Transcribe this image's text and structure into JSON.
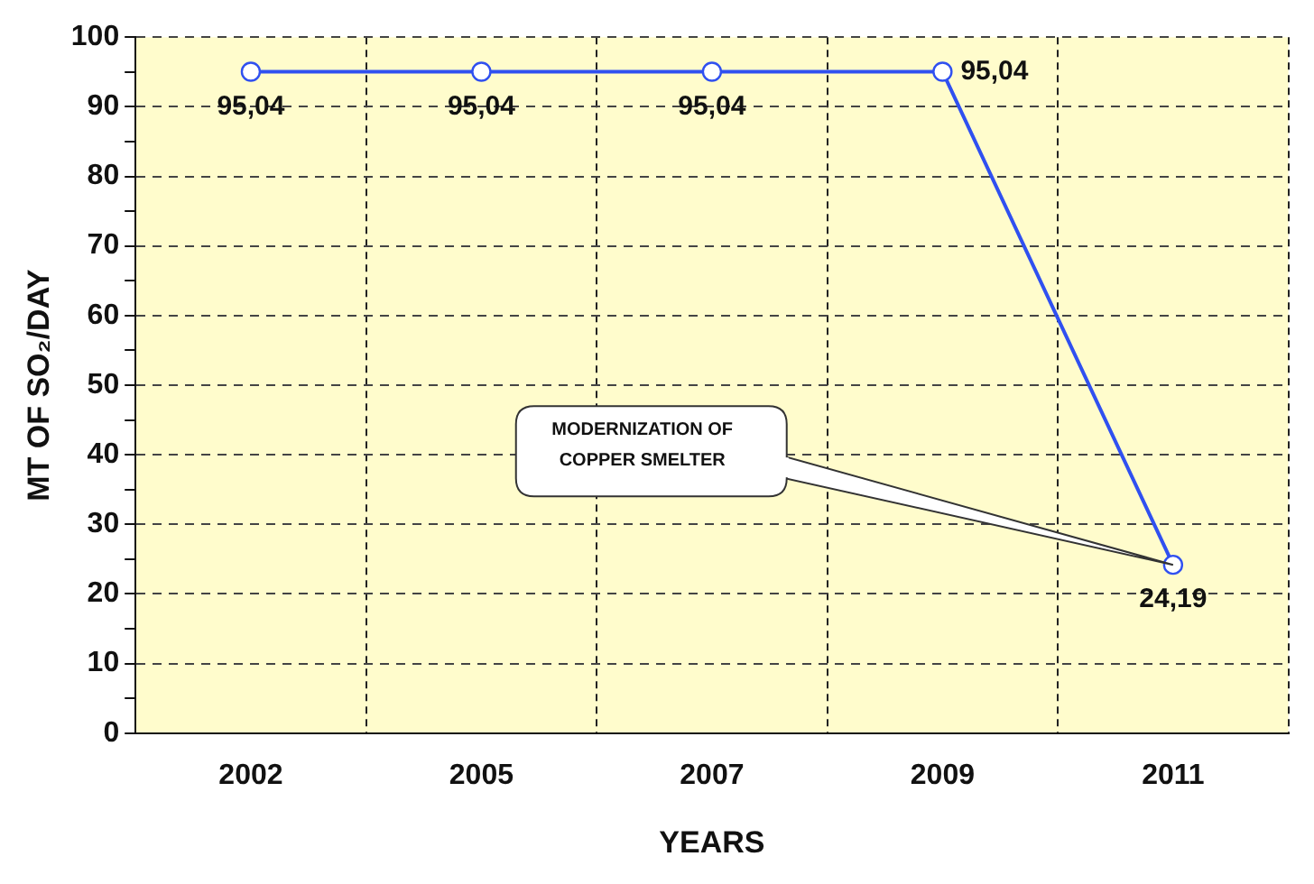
{
  "chart_data": {
    "type": "line",
    "xlabel": "YEARS",
    "ylabel": "MT OF SO₂/DAY",
    "categories": [
      "2002",
      "2005",
      "2007",
      "2009",
      "2011"
    ],
    "series": [
      {
        "color": "#3050f0",
        "values": [
          95.04,
          95.04,
          95.04,
          95.04,
          24.19
        ],
        "value_labels": [
          "95,04",
          "95,04",
          "95,04",
          "95,04",
          "24,19"
        ]
      }
    ],
    "ylim": [
      0,
      100
    ],
    "yticks": [
      0,
      {
        "value": 5,
        "label": null
      },
      10,
      {
        "value": 15,
        "label": null
      },
      20,
      {
        "value": 25,
        "label": null
      },
      30,
      {
        "value": 35,
        "label": null
      },
      40,
      {
        "value": 45,
        "label": null
      },
      50,
      {
        "value": 55,
        "label": null
      },
      60,
      {
        "value": 65,
        "label": null
      },
      70,
      {
        "value": 75,
        "label": null
      },
      80,
      {
        "value": 85,
        "label": null
      },
      90,
      {
        "value": 95,
        "label": null
      },
      100
    ],
    "grid": true,
    "marker": "circle",
    "line_style": "solid",
    "legend": false,
    "annotations": [
      "MODERNIZATION OF\nCOPPER SMELTER"
    ]
  }
}
